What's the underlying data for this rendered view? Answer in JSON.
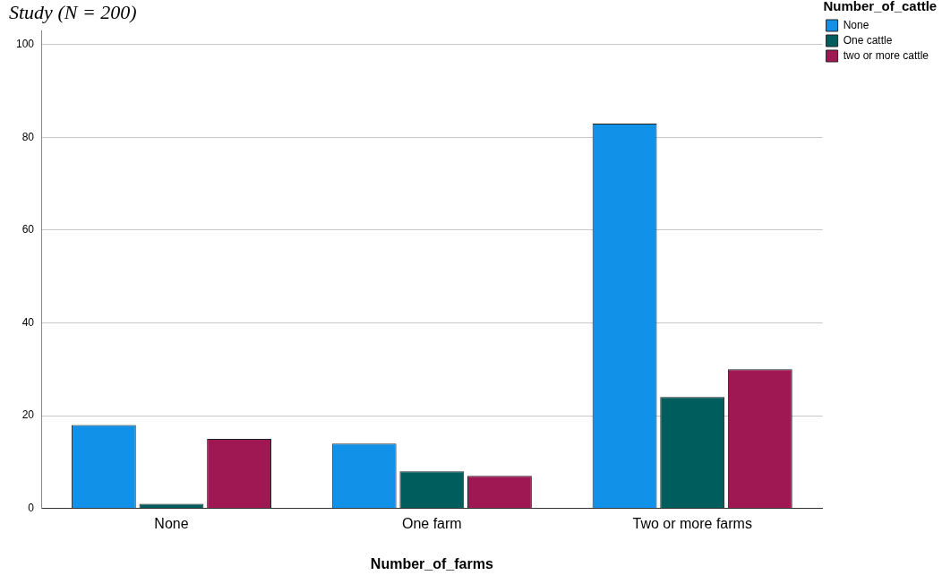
{
  "chart_data": {
    "type": "bar",
    "title": "Study (N = 200)",
    "xlabel": "Number_of_farms",
    "legend_title": "Number_of_cattle",
    "categories": [
      "None",
      "One farm",
      "Two or more farms"
    ],
    "series": [
      {
        "name": "None",
        "color": "#1192e8",
        "values": [
          18,
          14,
          83
        ]
      },
      {
        "name": "One cattle",
        "color": "#005d5d",
        "values": [
          1,
          8,
          24
        ]
      },
      {
        "name": "two or more cattle",
        "color": "#9f1853",
        "values": [
          15,
          7,
          30
        ]
      }
    ],
    "ylim": [
      0,
      103
    ],
    "yticks": [
      0,
      20,
      40,
      60,
      80,
      100
    ],
    "grid": "y",
    "legend": "top right"
  }
}
